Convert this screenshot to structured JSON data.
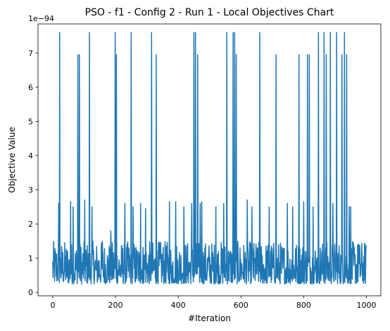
{
  "chart_data": {
    "type": "line",
    "title": "PSO - f1 - Config 2 - Run 1 - Local Objectives Chart",
    "xlabel": "#Iteration",
    "ylabel": "Objective Value",
    "offset_label": "1e−94",
    "scale_exponent": -94,
    "xlim": [
      -47,
      1046
    ],
    "ylim": [
      -0.1,
      7.85
    ],
    "x_ticks": [
      0,
      200,
      400,
      600,
      800,
      1000
    ],
    "x_tick_labels": [
      "0",
      "200",
      "400",
      "600",
      "800",
      "1000"
    ],
    "y_ticks": [
      0,
      1,
      2,
      3,
      4,
      5,
      6,
      7
    ],
    "y_tick_labels": [
      "0",
      "1",
      "2",
      "3",
      "4",
      "5",
      "6",
      "7"
    ],
    "grid": false,
    "legend": "none",
    "series": [
      {
        "color": "#1f77b4",
        "x_start": 0,
        "x_step": 1,
        "count": 1000,
        "baseline_min": 0.25,
        "baseline_max": 1.5,
        "peaks": [
          {
            "x": 19,
            "y": 2.6
          },
          {
            "x": 22,
            "y": 7.6
          },
          {
            "x": 57,
            "y": 2.65
          },
          {
            "x": 65,
            "y": 2.5
          },
          {
            "x": 80,
            "y": 6.95
          },
          {
            "x": 85,
            "y": 6.95
          },
          {
            "x": 102,
            "y": 2.7
          },
          {
            "x": 117,
            "y": 7.6
          },
          {
            "x": 125,
            "y": 2.5
          },
          {
            "x": 158,
            "y": 1.5
          },
          {
            "x": 185,
            "y": 1.8
          },
          {
            "x": 199,
            "y": 7.6
          },
          {
            "x": 203,
            "y": 6.95
          },
          {
            "x": 230,
            "y": 2.6
          },
          {
            "x": 250,
            "y": 7.6
          },
          {
            "x": 256,
            "y": 2.5
          },
          {
            "x": 280,
            "y": 2.6
          },
          {
            "x": 296,
            "y": 2.45
          },
          {
            "x": 315,
            "y": 7.6
          },
          {
            "x": 330,
            "y": 6.95
          },
          {
            "x": 372,
            "y": 2.65
          },
          {
            "x": 392,
            "y": 2.65
          },
          {
            "x": 418,
            "y": 2.5
          },
          {
            "x": 443,
            "y": 2.6
          },
          {
            "x": 450,
            "y": 7.6
          },
          {
            "x": 455,
            "y": 7.6
          },
          {
            "x": 462,
            "y": 6.95
          },
          {
            "x": 470,
            "y": 2.6
          },
          {
            "x": 475,
            "y": 2.65
          },
          {
            "x": 520,
            "y": 2.5
          },
          {
            "x": 545,
            "y": 2.6
          },
          {
            "x": 555,
            "y": 7.6
          },
          {
            "x": 575,
            "y": 7.6
          },
          {
            "x": 580,
            "y": 7.6
          },
          {
            "x": 585,
            "y": 6.95
          },
          {
            "x": 620,
            "y": 2.7
          },
          {
            "x": 635,
            "y": 2.5
          },
          {
            "x": 660,
            "y": 7.6
          },
          {
            "x": 690,
            "y": 2.5
          },
          {
            "x": 712,
            "y": 6.95
          },
          {
            "x": 748,
            "y": 2.6
          },
          {
            "x": 765,
            "y": 2.5
          },
          {
            "x": 785,
            "y": 6.95
          },
          {
            "x": 800,
            "y": 2.65
          },
          {
            "x": 812,
            "y": 6.95
          },
          {
            "x": 818,
            "y": 6.95
          },
          {
            "x": 830,
            "y": 2.5
          },
          {
            "x": 847,
            "y": 7.6
          },
          {
            "x": 865,
            "y": 7.6
          },
          {
            "x": 872,
            "y": 6.95
          },
          {
            "x": 885,
            "y": 7.6
          },
          {
            "x": 893,
            "y": 2.6
          },
          {
            "x": 905,
            "y": 7.6
          },
          {
            "x": 922,
            "y": 6.95
          },
          {
            "x": 930,
            "y": 7.6
          },
          {
            "x": 937,
            "y": 6.95
          },
          {
            "x": 945,
            "y": 2.5
          },
          {
            "x": 950,
            "y": 2.5
          },
          {
            "x": 975,
            "y": 1.4
          }
        ]
      }
    ]
  }
}
